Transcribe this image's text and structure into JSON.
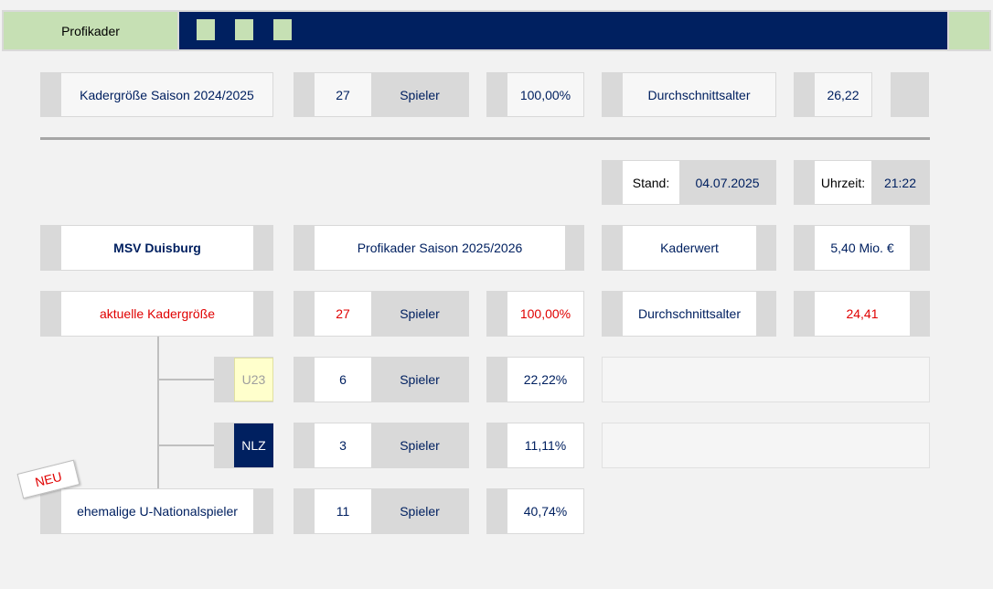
{
  "header": {
    "tab_label": "Profikader"
  },
  "top": {
    "squad_label": "Kadergröße Saison 2024/2025",
    "count": "27",
    "unit": "Spieler",
    "percent": "100,00%",
    "avg_age_label": "Durchschnittsalter",
    "avg_age": "26,22"
  },
  "stand": {
    "label": "Stand:",
    "date": "04.07.2025"
  },
  "uhrzeit": {
    "label": "Uhrzeit:",
    "time": "21:22"
  },
  "club": {
    "name": "MSV Duisburg",
    "season_label": "Profikader Saison 2025/2026",
    "value_label": "Kaderwert",
    "value": "5,40 Mio. €"
  },
  "current": {
    "label": "aktuelle Kadergröße",
    "count": "27",
    "unit": "Spieler",
    "percent": "100,00%",
    "avg_age_label": "Durchschnittsalter",
    "avg_age": "24,41"
  },
  "u23": {
    "label": "U23",
    "count": "6",
    "unit": "Spieler",
    "percent": "22,22%"
  },
  "nlz": {
    "label": "NLZ",
    "count": "3",
    "unit": "Spieler",
    "percent": "11,11%"
  },
  "former": {
    "badge": "NEU",
    "label": "ehemalige U-Nationalspieler",
    "count": "11",
    "unit": "Spieler",
    "percent": "40,74%"
  },
  "colors": {
    "navy": "#002060",
    "green": "#c6e0b4",
    "red": "#e00000",
    "u23_fill": "#ffffcc"
  }
}
